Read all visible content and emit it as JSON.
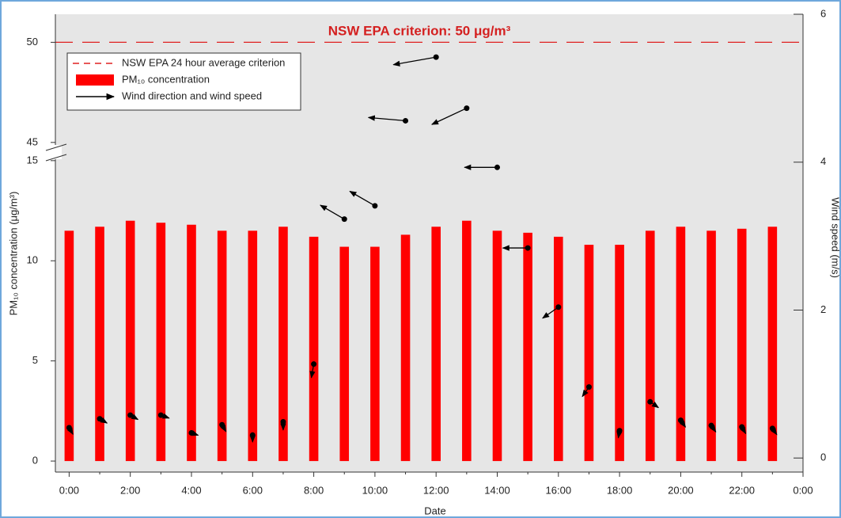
{
  "chart_data": {
    "type": "bar",
    "title": "NSW EPA criterion: 50 μg/m³",
    "x_label": "Date",
    "y_label": "PM₁₀ concentration (μg/m³)",
    "y2_label": "Wind speed (m/s)",
    "x": [
      0,
      1,
      2,
      3,
      4,
      5,
      6,
      7,
      8,
      9,
      10,
      11,
      12,
      13,
      14,
      15,
      16,
      17,
      18,
      19,
      20,
      21,
      22,
      23
    ],
    "xlim": [
      -0.45,
      24
    ],
    "xticks": [
      {
        "value": 0,
        "label": "0:00"
      },
      {
        "value": 2,
        "label": "2:00"
      },
      {
        "value": 4,
        "label": "4:00"
      },
      {
        "value": 6,
        "label": "6:00"
      },
      {
        "value": 8,
        "label": "8:00"
      },
      {
        "value": 10,
        "label": "10:00"
      },
      {
        "value": 12,
        "label": "12:00"
      },
      {
        "value": 14,
        "label": "14:00"
      },
      {
        "value": 16,
        "label": "16:00"
      },
      {
        "value": 18,
        "label": "18:00"
      },
      {
        "value": 20,
        "label": "20:00"
      },
      {
        "value": 22,
        "label": "22:00"
      },
      {
        "value": 24,
        "label": "0:00"
      }
    ],
    "ylim": [
      -0.55,
      51.4
    ],
    "y_break": [
      15,
      45
    ],
    "yticks": [
      0,
      5,
      10,
      15,
      45,
      50
    ],
    "y2lim": [
      -0.19,
      6
    ],
    "y2ticks": [
      0,
      2,
      4,
      6
    ],
    "series": [
      {
        "name": "PM₁₀ concentration",
        "color": "#ff0000",
        "values": [
          11.5,
          11.7,
          12.0,
          11.9,
          11.8,
          11.5,
          11.5,
          11.7,
          11.2,
          10.7,
          10.7,
          11.3,
          11.7,
          12.0,
          11.5,
          11.4,
          11.2,
          10.8,
          10.8,
          11.5,
          11.7,
          11.5,
          11.6,
          11.7
        ]
      },
      {
        "name": "Wind direction and wind speed",
        "color": "#000000",
        "axis": "y2",
        "values": [
          0.41,
          0.53,
          0.58,
          0.58,
          0.34,
          0.45,
          0.31,
          0.49,
          1.27,
          3.23,
          3.41,
          4.56,
          5.42,
          4.73,
          3.93,
          2.84,
          2.04,
          0.96,
          0.37,
          0.76,
          0.51,
          0.44,
          0.42,
          0.4
        ],
        "directions": [
          150,
          120,
          120,
          110,
          110,
          150,
          180,
          180,
          190,
          300,
          300,
          275,
          260,
          245,
          270,
          270,
          235,
          215,
          190,
          125,
          145,
          145,
          150,
          145
        ]
      }
    ],
    "reference_line": {
      "name": "NSW EPA 24 hour average criterion",
      "value": 50,
      "color": "#e02020"
    }
  }
}
